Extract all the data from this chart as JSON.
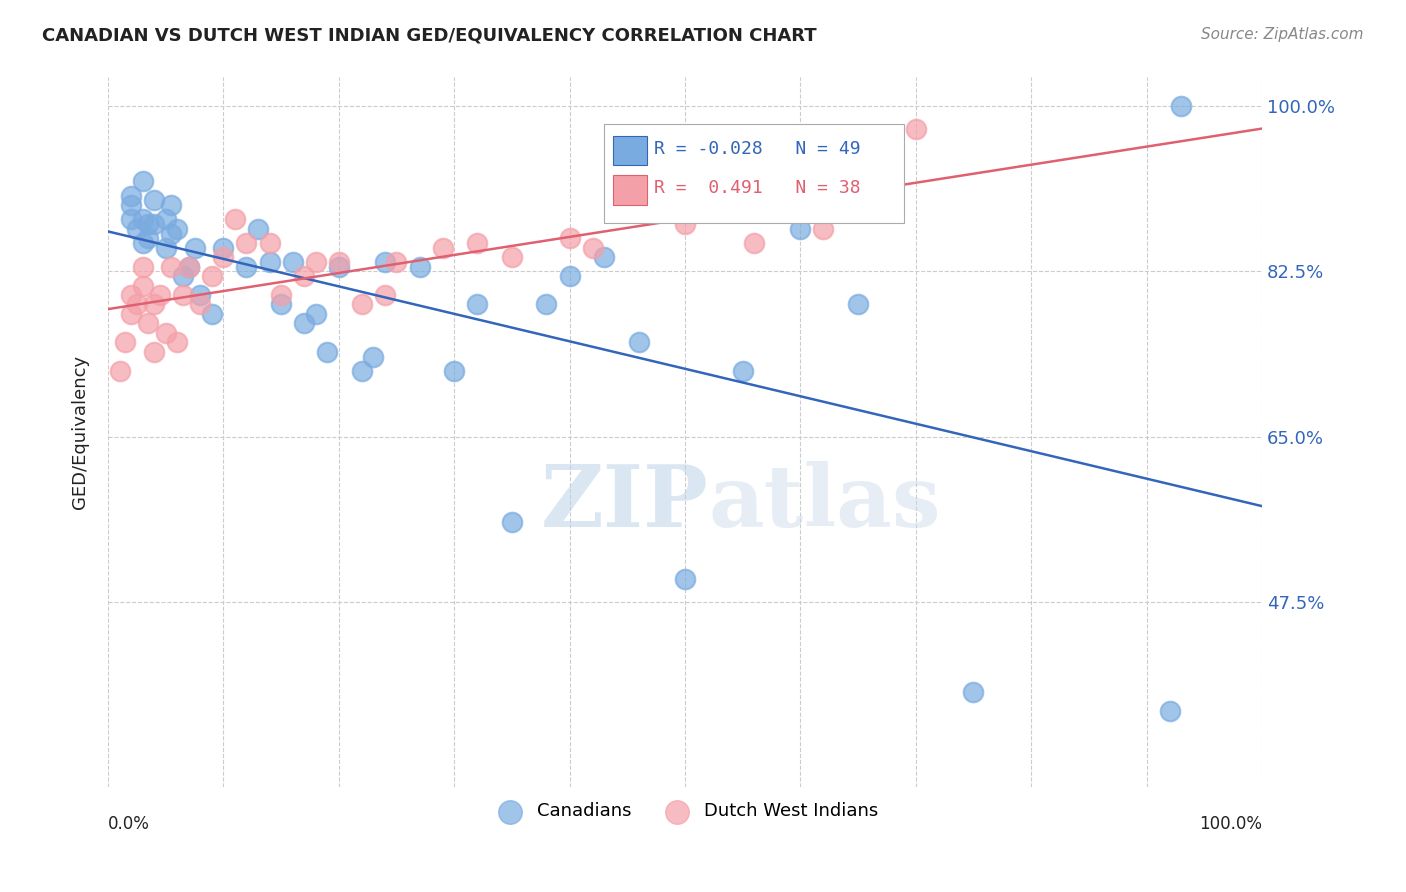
{
  "title": "CANADIAN VS DUTCH WEST INDIAN GED/EQUIVALENCY CORRELATION CHART",
  "source": "Source: ZipAtlas.com",
  "ylabel": "GED/Equivalency",
  "xlim": [
    0.0,
    1.0
  ],
  "ylim": [
    0.28,
    1.03
  ],
  "yticks": [
    0.475,
    0.65,
    0.825,
    1.0
  ],
  "ytick_labels": [
    "47.5%",
    "65.0%",
    "82.5%",
    "100.0%"
  ],
  "watermark_zip": "ZIP",
  "watermark_atlas": "atlas",
  "r_canadian": -0.028,
  "r_dutch": 0.491,
  "n_canadian": 49,
  "n_dutch": 38,
  "canadian_x": [
    0.02,
    0.02,
    0.02,
    0.025,
    0.03,
    0.03,
    0.03,
    0.035,
    0.035,
    0.04,
    0.04,
    0.05,
    0.05,
    0.055,
    0.055,
    0.06,
    0.065,
    0.07,
    0.075,
    0.08,
    0.09,
    0.1,
    0.12,
    0.13,
    0.14,
    0.15,
    0.16,
    0.17,
    0.18,
    0.19,
    0.2,
    0.22,
    0.23,
    0.24,
    0.27,
    0.3,
    0.32,
    0.35,
    0.38,
    0.4,
    0.43,
    0.46,
    0.5,
    0.55,
    0.6,
    0.65,
    0.75,
    0.92,
    0.93
  ],
  "canadian_y": [
    0.895,
    0.905,
    0.88,
    0.87,
    0.92,
    0.88,
    0.855,
    0.875,
    0.86,
    0.9,
    0.875,
    0.88,
    0.85,
    0.895,
    0.865,
    0.87,
    0.82,
    0.83,
    0.85,
    0.8,
    0.78,
    0.85,
    0.83,
    0.87,
    0.835,
    0.79,
    0.835,
    0.77,
    0.78,
    0.74,
    0.83,
    0.72,
    0.735,
    0.835,
    0.83,
    0.72,
    0.79,
    0.56,
    0.79,
    0.82,
    0.84,
    0.75,
    0.5,
    0.72,
    0.87,
    0.79,
    0.38,
    0.36,
    1.0
  ],
  "dutch_x": [
    0.01,
    0.015,
    0.02,
    0.02,
    0.025,
    0.03,
    0.03,
    0.035,
    0.04,
    0.04,
    0.045,
    0.05,
    0.055,
    0.06,
    0.065,
    0.07,
    0.08,
    0.09,
    0.1,
    0.11,
    0.12,
    0.14,
    0.15,
    0.17,
    0.18,
    0.2,
    0.22,
    0.24,
    0.25,
    0.29,
    0.32,
    0.35,
    0.4,
    0.42,
    0.5,
    0.56,
    0.62,
    0.7
  ],
  "dutch_y": [
    0.72,
    0.75,
    0.8,
    0.78,
    0.79,
    0.81,
    0.83,
    0.77,
    0.74,
    0.79,
    0.8,
    0.76,
    0.83,
    0.75,
    0.8,
    0.83,
    0.79,
    0.82,
    0.84,
    0.88,
    0.855,
    0.855,
    0.8,
    0.82,
    0.835,
    0.835,
    0.79,
    0.8,
    0.835,
    0.85,
    0.855,
    0.84,
    0.86,
    0.85,
    0.875,
    0.855,
    0.87,
    0.975
  ],
  "canadian_color": "#7aabe0",
  "dutch_color": "#f4a0a8",
  "canadian_line_color": "#3366bb",
  "dutch_line_color": "#e06070",
  "background_color": "#ffffff",
  "grid_color": "#cccccc",
  "title_color": "#222222",
  "right_axis_color": "#3366bb",
  "figsize": [
    14.06,
    8.92
  ],
  "dpi": 100
}
